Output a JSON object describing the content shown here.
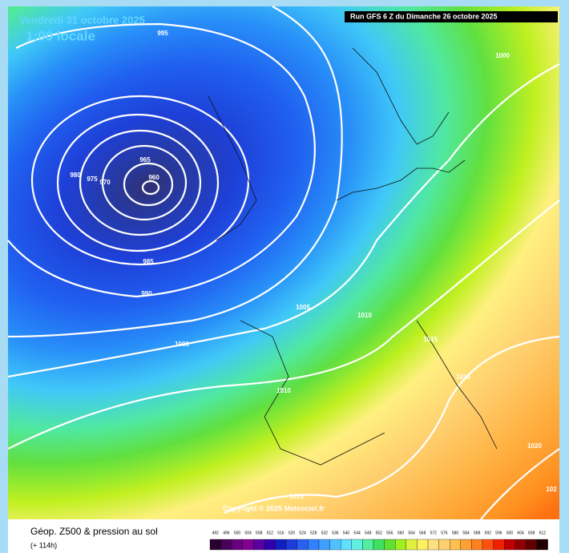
{
  "header": {
    "date": "Vendredi 31 octobre 2025",
    "time": "1:00 locale",
    "run": "Run GFS 6 Z du Dimanche 26 octobre 2025"
  },
  "map": {
    "isobar_labels": [
      "995",
      "1000",
      "965",
      "960",
      "980",
      "975",
      "970",
      "985",
      "990",
      "1005",
      "1010",
      "1000",
      "1010",
      "1015",
      "1015",
      "1020",
      "102",
      "1015"
    ],
    "copyright": "Copyright © 2025 Meteociel.fr"
  },
  "footer": {
    "title": "Géop. Z500 & pression au sol",
    "lead": "(+ 114h)"
  },
  "scale": {
    "labels": [
      492,
      496,
      500,
      504,
      508,
      512,
      516,
      520,
      524,
      528,
      532,
      536,
      540,
      544,
      548,
      552,
      556,
      560,
      564,
      568,
      572,
      576,
      580,
      584,
      588,
      592,
      596,
      600,
      604,
      608,
      612
    ],
    "colors": [
      "#2a0030",
      "#48005a",
      "#6a0080",
      "#800090",
      "#5a00a0",
      "#3000b0",
      "#1020c0",
      "#1e3cdc",
      "#2860f0",
      "#3080ff",
      "#40a0ff",
      "#50c0ff",
      "#60e0ff",
      "#60f0e0",
      "#50f0a0",
      "#40e060",
      "#60e030",
      "#a0f020",
      "#e0f040",
      "#fff060",
      "#ffe080",
      "#ffd070",
      "#ffc050",
      "#ffa030",
      "#ff8020",
      "#ff5010",
      "#f02000",
      "#c00000",
      "#900000",
      "#600000",
      "#200000"
    ]
  }
}
